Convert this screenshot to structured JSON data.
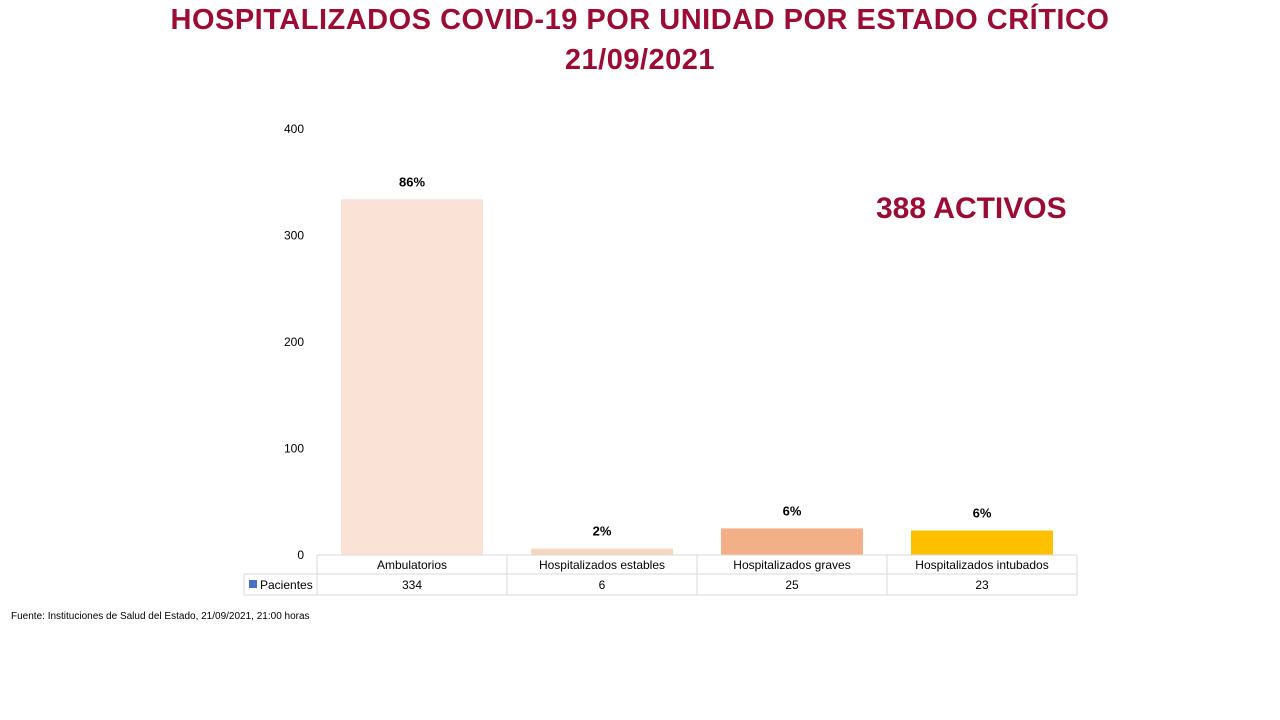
{
  "title_line1": "HOSPITALIZADOS COVID-19 POR UNIDAD POR ESTADO CRÍTICO",
  "title_line2": "21/09/2021",
  "annotation": "388 ACTIVOS",
  "source": "Fuente: Instituciones de Salud del Estado, 21/09/2021, 21:00 horas",
  "chart_data": {
    "type": "bar",
    "categories": [
      "Ambulatorios",
      "Hospitalizados estables",
      "Hospitalizados graves",
      "Hospitalizados intubados"
    ],
    "series": [
      {
        "name": "Pacientes",
        "values": [
          334,
          6,
          25,
          23
        ],
        "value_labels": [
          "334",
          "6",
          "25",
          "23"
        ]
      }
    ],
    "data_labels": [
      "86%",
      "2%",
      "6%",
      "6%"
    ],
    "bar_colors": [
      "#fae3d6",
      "#f8d6c0",
      "#f3b088",
      "#ffc000"
    ],
    "legend_color": "#4472c4",
    "ylim": [
      0,
      400
    ],
    "yticks": [
      0,
      100,
      200,
      300,
      400
    ],
    "grid": false,
    "legend": "data-table"
  }
}
